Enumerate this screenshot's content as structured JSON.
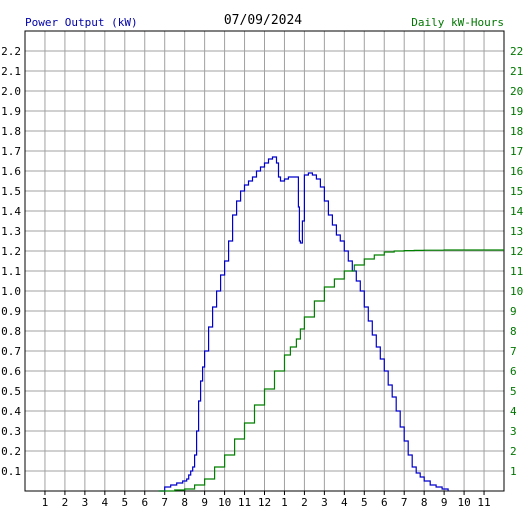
{
  "chart_data": {
    "type": "line",
    "title": "07/09/2024",
    "left_axis_label": "Power Output (kW)",
    "right_axis_label": "Daily kW-Hours",
    "colors": {
      "power": "#0000cc",
      "energy": "#008000",
      "grid": "#a0a0a0",
      "axis": "#000000",
      "left_label": "#0000aa",
      "right_label": "#007700"
    },
    "x_range_hours": [
      0,
      24
    ],
    "x_tick_labels": [
      "1",
      "2",
      "3",
      "4",
      "5",
      "6",
      "7",
      "8",
      "9",
      "10",
      "11",
      "12",
      "1",
      "2",
      "3",
      "4",
      "5",
      "6",
      "7",
      "8",
      "9",
      "10",
      "11"
    ],
    "ylim_left": [
      0,
      2.3
    ],
    "ylim_right": [
      0,
      23
    ],
    "y_left_tick_labels": [
      "0.1",
      "0.2",
      "0.3",
      "0.4",
      "0.5",
      "0.6",
      "0.7",
      "0.8",
      "0.9",
      "1.0",
      "1.1",
      "1.2",
      "1.3",
      "1.4",
      "1.5",
      "1.6",
      "1.7",
      "1.8",
      "1.9",
      "2.0",
      "2.1",
      "2.2"
    ],
    "y_right_tick_labels": [
      "1",
      "2",
      "3",
      "4",
      "5",
      "6",
      "7",
      "8",
      "9",
      "10",
      "11",
      "12",
      "13",
      "14",
      "15",
      "16",
      "17",
      "18",
      "19",
      "20",
      "21",
      "22"
    ],
    "grid": true,
    "series": [
      {
        "name": "Power Output (kW)",
        "axis": "left",
        "x": [
          6.7,
          7.0,
          7.3,
          7.6,
          7.9,
          8.1,
          8.2,
          8.3,
          8.4,
          8.5,
          8.6,
          8.7,
          8.8,
          8.9,
          9.0,
          9.2,
          9.4,
          9.6,
          9.8,
          10.0,
          10.2,
          10.4,
          10.6,
          10.8,
          11.0,
          11.2,
          11.4,
          11.6,
          11.8,
          12.0,
          12.2,
          12.4,
          12.6,
          12.7,
          12.8,
          13.0,
          13.2,
          13.4,
          13.6,
          13.7,
          13.75,
          13.8,
          13.9,
          14.0,
          14.2,
          14.4,
          14.6,
          14.8,
          15.0,
          15.2,
          15.4,
          15.6,
          15.8,
          16.0,
          16.2,
          16.4,
          16.6,
          16.8,
          17.0,
          17.2,
          17.4,
          17.6,
          17.8,
          18.0,
          18.2,
          18.4,
          18.6,
          18.8,
          19.0,
          19.2,
          19.4,
          19.6,
          19.8,
          20.0,
          20.3,
          20.6,
          20.9,
          21.1,
          21.2
        ],
        "values": [
          0.0,
          0.02,
          0.03,
          0.04,
          0.05,
          0.06,
          0.08,
          0.1,
          0.12,
          0.18,
          0.3,
          0.45,
          0.55,
          0.62,
          0.7,
          0.82,
          0.92,
          1.0,
          1.08,
          1.15,
          1.25,
          1.38,
          1.45,
          1.5,
          1.53,
          1.55,
          1.57,
          1.6,
          1.62,
          1.64,
          1.66,
          1.67,
          1.64,
          1.57,
          1.55,
          1.56,
          1.57,
          1.57,
          1.57,
          1.42,
          1.25,
          1.24,
          1.35,
          1.58,
          1.59,
          1.58,
          1.56,
          1.52,
          1.45,
          1.38,
          1.33,
          1.28,
          1.25,
          1.2,
          1.15,
          1.1,
          1.05,
          1.0,
          0.92,
          0.85,
          0.78,
          0.72,
          0.66,
          0.6,
          0.53,
          0.47,
          0.4,
          0.32,
          0.25,
          0.18,
          0.12,
          0.09,
          0.07,
          0.05,
          0.03,
          0.02,
          0.01,
          0.01,
          0.0
        ]
      },
      {
        "name": "Daily kW-Hours",
        "axis": "right",
        "x": [
          6.7,
          7.5,
          8.0,
          8.5,
          9.0,
          9.5,
          10.0,
          10.5,
          11.0,
          11.5,
          12.0,
          12.5,
          13.0,
          13.3,
          13.6,
          13.8,
          14.0,
          14.5,
          15.0,
          15.5,
          16.0,
          16.5,
          17.0,
          17.5,
          18.0,
          18.5,
          19.0,
          19.5,
          20.0,
          21.0,
          22.0,
          23.0,
          24.0
        ],
        "values": [
          0.0,
          0.05,
          0.1,
          0.3,
          0.6,
          1.2,
          1.8,
          2.6,
          3.4,
          4.3,
          5.1,
          6.0,
          6.8,
          7.2,
          7.6,
          8.1,
          8.7,
          9.5,
          10.2,
          10.6,
          11.0,
          11.3,
          11.6,
          11.8,
          11.95,
          12.0,
          12.02,
          12.03,
          12.04,
          12.05,
          12.05,
          12.05,
          12.05
        ]
      }
    ]
  }
}
